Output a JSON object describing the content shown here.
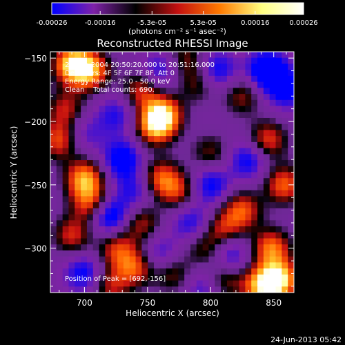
{
  "chart_data": {
    "type": "heatmap",
    "title": "Reconstructed RHESSI Image",
    "xlabel": "Heliocentric X (arcsec)",
    "ylabel": "Heliocentric Y (arcsec)",
    "xlim": [
      673,
      866
    ],
    "ylim": [
      -335,
      -145
    ],
    "x_ticks": [
      700,
      750,
      800,
      850
    ],
    "y_ticks": [
      -300,
      -250,
      -200,
      -150
    ],
    "colorbar": {
      "range": [
        -0.00026,
        0.00026
      ],
      "ticks": [
        "-0.00026",
        "-0.00016",
        "-5.3e-05",
        "5.3e-05",
        "0.00016",
        "0.00026"
      ],
      "unit_label": "(photons cm⁻² s⁻¹ asec⁻²)",
      "colors": [
        "#0000ff",
        "#7f22a8",
        "#000000",
        "#c41010",
        "#ff7a00",
        "#ffff80",
        "#ffffff"
      ]
    },
    "annotations": [
      "27-Feb-2004 20:50:20.000 to 20:51:16.000",
      "Detectors: 4F 5F 6F 7F 8F, Att 0",
      "Energy Range: 25.0 - 50.0 keV",
      "Clean    Total counts: 690."
    ],
    "peak_label": "Position of Peak = [692,-156]",
    "peak": {
      "x": 692,
      "y": -156
    },
    "blobs": [
      {
        "x": 690,
        "y": -155,
        "v": 1.0
      },
      {
        "x": 705,
        "y": -160,
        "v": 0.85
      },
      {
        "x": 745,
        "y": -175,
        "v": 0.6
      },
      {
        "x": 762,
        "y": -195,
        "v": 1.0
      },
      {
        "x": 755,
        "y": -205,
        "v": 0.7
      },
      {
        "x": 790,
        "y": -170,
        "v": 0.45
      },
      {
        "x": 685,
        "y": -190,
        "v": 0.55
      },
      {
        "x": 680,
        "y": -215,
        "v": 0.7
      },
      {
        "x": 700,
        "y": -245,
        "v": 0.9
      },
      {
        "x": 705,
        "y": -265,
        "v": 0.7
      },
      {
        "x": 690,
        "y": -290,
        "v": 0.6
      },
      {
        "x": 760,
        "y": -245,
        "v": 0.7
      },
      {
        "x": 775,
        "y": -255,
        "v": 0.55
      },
      {
        "x": 745,
        "y": -280,
        "v": 0.55
      },
      {
        "x": 725,
        "y": -300,
        "v": 0.6
      },
      {
        "x": 740,
        "y": -315,
        "v": 0.7
      },
      {
        "x": 770,
        "y": -320,
        "v": 0.5
      },
      {
        "x": 795,
        "y": -300,
        "v": 0.45
      },
      {
        "x": 810,
        "y": -325,
        "v": 0.55
      },
      {
        "x": 825,
        "y": -270,
        "v": 0.7
      },
      {
        "x": 810,
        "y": -285,
        "v": 0.55
      },
      {
        "x": 848,
        "y": -300,
        "v": 0.8
      },
      {
        "x": 855,
        "y": -325,
        "v": 1.0
      },
      {
        "x": 840,
        "y": -330,
        "v": 0.9
      },
      {
        "x": 858,
        "y": -250,
        "v": 0.75
      },
      {
        "x": 845,
        "y": -215,
        "v": 0.7
      },
      {
        "x": 825,
        "y": -180,
        "v": 0.5
      },
      {
        "x": 800,
        "y": -225,
        "v": 0.45
      },
      {
        "x": 720,
        "y": -330,
        "v": 0.55
      },
      {
        "x": 780,
        "y": -150,
        "v": 0.45
      },
      {
        "x": 730,
        "y": -230,
        "v": -0.7
      },
      {
        "x": 720,
        "y": -275,
        "v": -0.8
      },
      {
        "x": 805,
        "y": -160,
        "v": -0.6
      },
      {
        "x": 845,
        "y": -160,
        "v": -0.9
      },
      {
        "x": 860,
        "y": -175,
        "v": -0.6
      },
      {
        "x": 800,
        "y": -250,
        "v": -0.6
      },
      {
        "x": 830,
        "y": -230,
        "v": -0.6
      },
      {
        "x": 785,
        "y": -280,
        "v": -0.5
      },
      {
        "x": 725,
        "y": -195,
        "v": -0.45
      },
      {
        "x": 760,
        "y": -305,
        "v": -0.45
      },
      {
        "x": 700,
        "y": -320,
        "v": -0.6
      },
      {
        "x": 795,
        "y": -330,
        "v": -0.45
      },
      {
        "x": 815,
        "y": -305,
        "v": -0.55
      },
      {
        "x": 760,
        "y": -160,
        "v": -0.5
      },
      {
        "x": 740,
        "y": -255,
        "v": -0.45
      },
      {
        "x": 700,
        "y": -210,
        "v": -0.35
      }
    ]
  },
  "footer": {
    "timestamp": "24-Jun-2013 05:42"
  }
}
